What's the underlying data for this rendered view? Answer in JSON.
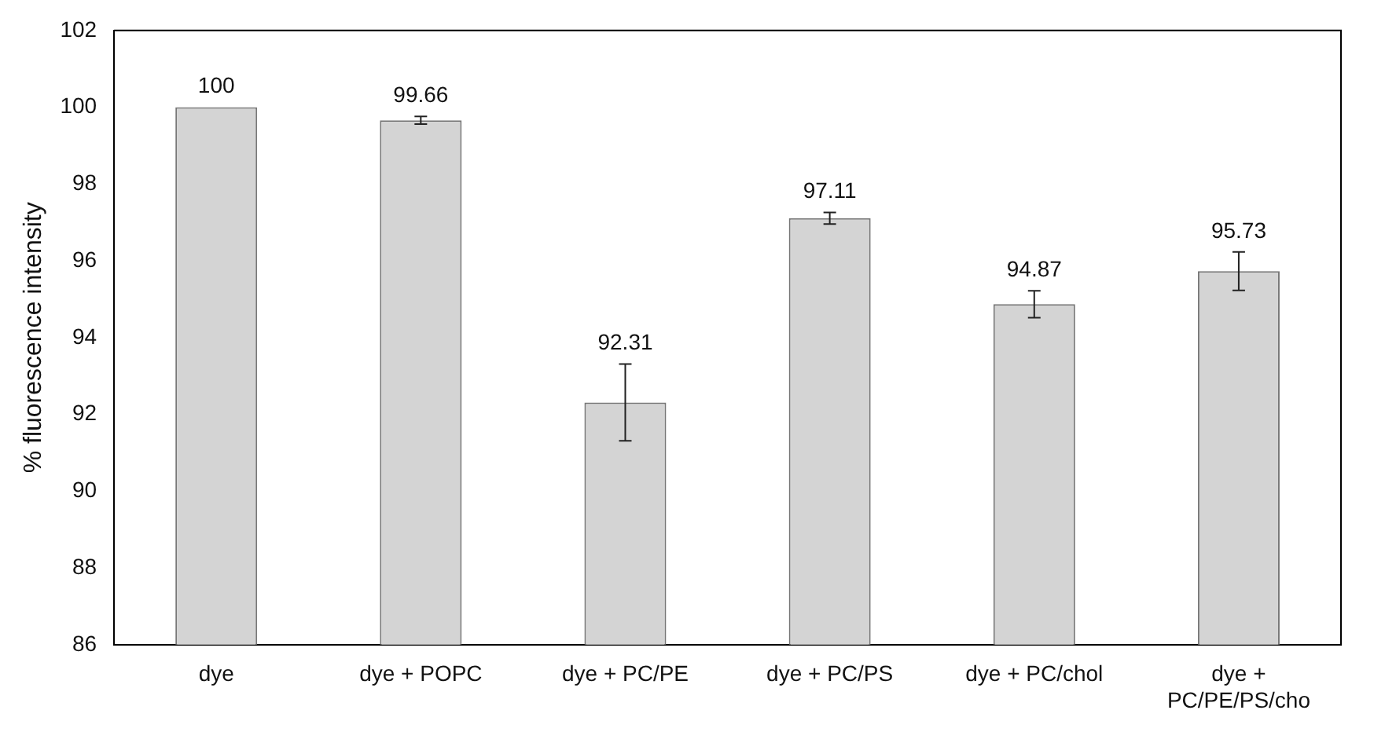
{
  "chart_data": {
    "type": "bar",
    "ylabel": "% fluorescence intensity",
    "categories": [
      "dye",
      "dye + POPC",
      "dye + PC/PE",
      "dye + PC/PS",
      "dye + PC/chol",
      "dye + PC/PE/PS/cho"
    ],
    "values": [
      100,
      99.66,
      92.31,
      97.11,
      94.87,
      95.73
    ],
    "errors": [
      null,
      0.1,
      1.0,
      0.15,
      0.35,
      0.5
    ],
    "color": "#d4d4d4",
    "ylim": [
      86,
      102
    ],
    "yticks": [
      86,
      88,
      90,
      92,
      94,
      96,
      98,
      100,
      102
    ],
    "grid": false,
    "legend": false,
    "data_labels": true
  }
}
